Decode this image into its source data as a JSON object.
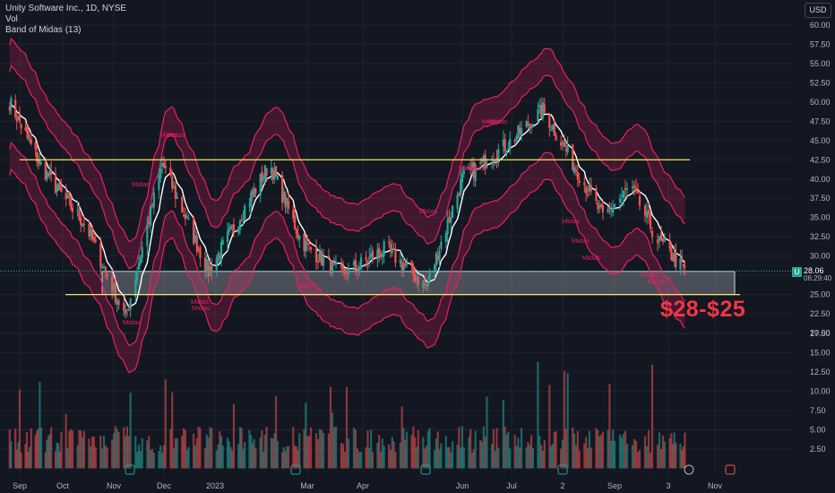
{
  "header": {
    "title": "Unity Software Inc., 1D, NYSE",
    "vol_label": "Vol",
    "indicator_label": "Band of Midas (13)",
    "currency": "USD"
  },
  "annotation": {
    "zone_label": "$28-$25",
    "midas_label": "Midas"
  },
  "price_tag": {
    "symbol": "U",
    "last_price": "28.06",
    "countdown": "06:29:40"
  },
  "colors": {
    "background": "#131722",
    "up": "#26a69a",
    "down": "#ef5350",
    "band": "#e91e63",
    "level_line": "#f5e663",
    "zone_fill": "#b2b5be",
    "midline": "#ffffff",
    "annotation_red": "#f23645"
  },
  "chart_data": {
    "type": "candlestick",
    "title": "Unity Software Inc., 1D, NYSE",
    "y_axis_ticks": [
      "60.00",
      "57.50",
      "55.00",
      "52.50",
      "50.00",
      "47.50",
      "45.00",
      "42.50",
      "40.00",
      "37.50",
      "35.00",
      "32.50",
      "30.00",
      "27.50",
      "25.00",
      "22.50",
      "20.00",
      "17.50",
      "15.00",
      "12.50",
      "10.00",
      "7.50",
      "5.00",
      "2.50"
    ],
    "x_axis_ticks": [
      "Sep",
      "Oct",
      "Nov",
      "Dec",
      "2023",
      "Mar",
      "Apr",
      "Jun",
      "Jul",
      "2",
      "Sep",
      "3",
      "Nov"
    ],
    "ylim": [
      2.5,
      60
    ],
    "price_path_monthly": [
      {
        "date": "2022-08-25",
        "close": 50.0
      },
      {
        "date": "2022-09-15",
        "close": 42.0
      },
      {
        "date": "2022-10-15",
        "close": 34.0
      },
      {
        "date": "2022-11-08",
        "close": 22.0
      },
      {
        "date": "2022-11-30",
        "close": 42.0
      },
      {
        "date": "2022-12-28",
        "close": 28.0
      },
      {
        "date": "2023-02-05",
        "close": 42.0
      },
      {
        "date": "2023-02-25",
        "close": 32.0
      },
      {
        "date": "2023-03-20",
        "close": 27.5
      },
      {
        "date": "2023-04-15",
        "close": 31.0
      },
      {
        "date": "2023-05-10",
        "close": 26.0
      },
      {
        "date": "2023-06-01",
        "close": 40.0
      },
      {
        "date": "2023-07-01",
        "close": 45.0
      },
      {
        "date": "2023-07-20",
        "close": 49.0
      },
      {
        "date": "2023-08-10",
        "close": 41.0
      },
      {
        "date": "2023-08-25",
        "close": 35.0
      },
      {
        "date": "2023-09-10",
        "close": 39.0
      },
      {
        "date": "2023-09-25",
        "close": 32.0
      },
      {
        "date": "2023-10-12",
        "close": 28.06
      }
    ],
    "levels": {
      "resistance": 42.5,
      "support": 25.0,
      "zone": [
        25.0,
        28.0
      ]
    },
    "midas_label_count": 17,
    "last_price": 28.06,
    "series": [
      {
        "name": "Vol"
      },
      {
        "name": "Band of Midas (13)"
      }
    ]
  }
}
